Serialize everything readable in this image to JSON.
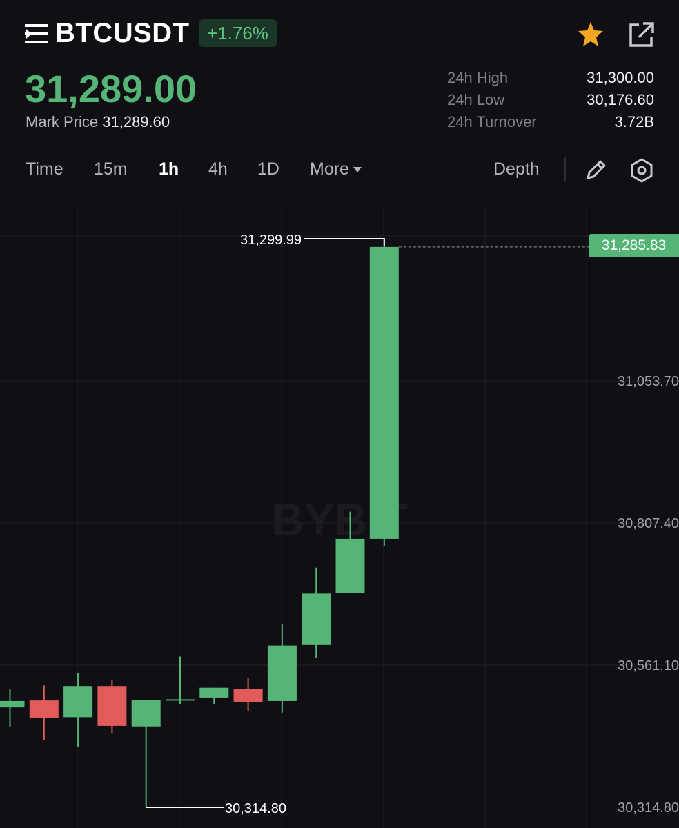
{
  "header": {
    "menu_icon": "menu-icon",
    "symbol": "BTCUSDT",
    "change": "+1.76%",
    "star_icon": "star-icon",
    "share_icon": "share-external-icon",
    "last_price": "31,289.00",
    "mark_price_label": "Mark Price",
    "mark_price_value": "31,289.60",
    "stats": [
      {
        "label": "24h High",
        "value": "31,300.00"
      },
      {
        "label": "24h Low",
        "value": "30,176.60"
      },
      {
        "label": "24h Turnover",
        "value": "3.72B"
      }
    ]
  },
  "tabs": {
    "items": [
      {
        "label": "Time"
      },
      {
        "label": "15m"
      },
      {
        "label": "1h",
        "active": true
      },
      {
        "label": "4h"
      },
      {
        "label": "1D"
      },
      {
        "label": "More"
      }
    ],
    "depth_label": "Depth",
    "edit_icon": "pencil-icon",
    "settings_icon": "hexagon-settings-icon"
  },
  "colors": {
    "up": "#55b577",
    "down": "#e25b5b",
    "background": "#101014"
  },
  "chart_data": {
    "type": "candlestick",
    "watermark": "BYBIT",
    "y_ticks": [
      31053.7,
      30807.4,
      30561.1,
      30314.8
    ],
    "y_tick_labels": [
      "31,053.70",
      "30,807.40",
      "30,561.10",
      "30,314.80"
    ],
    "current_price": 31285.83,
    "current_price_label": "31,285.83",
    "high_marker_label": "31,299.99",
    "low_marker_label": "30,314.80",
    "candles": [
      {
        "o": 30488,
        "h": 30519,
        "l": 30455,
        "c": 30499
      },
      {
        "o": 30500,
        "h": 30526,
        "l": 30431,
        "c": 30470
      },
      {
        "o": 30471,
        "h": 30547,
        "l": 30419,
        "c": 30525
      },
      {
        "o": 30525,
        "h": 30535,
        "l": 30443,
        "c": 30456
      },
      {
        "o": 30455,
        "h": 30501,
        "l": 30314.8,
        "c": 30501
      },
      {
        "o": 30500,
        "h": 30576,
        "l": 30494,
        "c": 30502
      },
      {
        "o": 30505,
        "h": 30522,
        "l": 30493,
        "c": 30522
      },
      {
        "o": 30520,
        "h": 30539,
        "l": 30482,
        "c": 30497
      },
      {
        "o": 30499,
        "h": 30632,
        "l": 30479,
        "c": 30595
      },
      {
        "o": 30596,
        "h": 30730,
        "l": 30574,
        "c": 30685
      },
      {
        "o": 30686,
        "h": 30827,
        "l": 30686,
        "c": 30780
      },
      {
        "o": 30780,
        "h": 31299.99,
        "l": 30768,
        "c": 31285.83
      }
    ]
  }
}
